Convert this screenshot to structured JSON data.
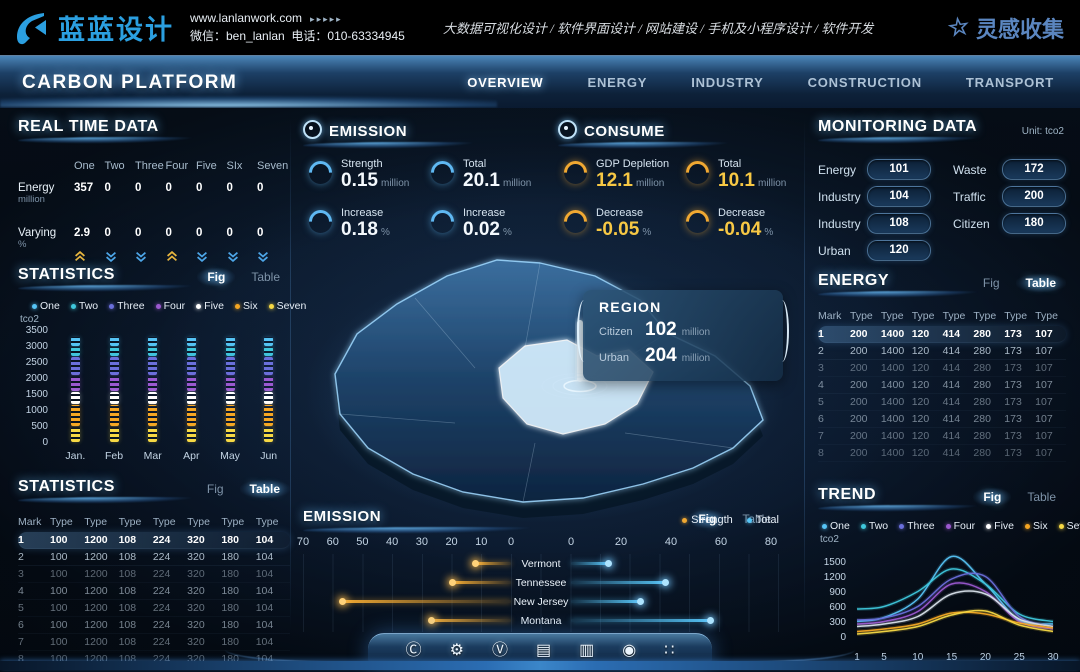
{
  "topbar": {
    "logo_text": "蓝蓝设计",
    "website": "www.lanlanwork.com",
    "website_arrows": "▸▸▸▸▸",
    "wechat": "微信：ben_lanlan",
    "phone": "电话：010-63334945",
    "services": "大数据可视化设计 / 软件界面设计 / 网站建设 / 手机及小程序设计 / 软件开发",
    "collect": "灵感收集"
  },
  "nav": {
    "title": "CARBON PLATFORM",
    "items": [
      {
        "label": "OVERVIEW",
        "active": true
      },
      {
        "label": "ENERGY",
        "active": false
      },
      {
        "label": "INDUSTRY",
        "active": false
      },
      {
        "label": "CONSTRUCTION",
        "active": false
      },
      {
        "label": "TRANSPORT",
        "active": false
      }
    ]
  },
  "realtime": {
    "title": "REAL TIME DATA",
    "columns": [
      "One",
      "Two",
      "Three",
      "Four",
      "Five",
      "SIx",
      "Seven"
    ],
    "rows": [
      {
        "label": "Energy",
        "unit": "million",
        "values": [
          "357",
          "0",
          "0",
          "0",
          "0",
          "0",
          "0"
        ]
      },
      {
        "label": "Varying",
        "unit": "%",
        "values": [
          "2.9",
          "0",
          "0",
          "0",
          "0",
          "0",
          "0"
        ]
      }
    ],
    "trends": [
      "up",
      "down",
      "down",
      "up",
      "down",
      "down",
      "down"
    ],
    "trend_colors": {
      "up": "#e8b63e",
      "down": "#4da6e8"
    }
  },
  "statistics_fig": {
    "title": "STATISTICS",
    "tabs": {
      "fig": "Fig",
      "table": "Table",
      "active": "fig"
    }
  },
  "statistics_table": {
    "title": "STATISTICS",
    "tabs": {
      "fig": "Fig",
      "table": "Table",
      "active": "table"
    },
    "columns": [
      "Mark",
      "Type",
      "Type",
      "Type",
      "Type",
      "Type",
      "Type",
      "Type"
    ],
    "rows": [
      [
        "1",
        "100",
        "1200",
        "108",
        "224",
        "320",
        "180",
        "104"
      ],
      [
        "2",
        "100",
        "1200",
        "108",
        "224",
        "320",
        "180",
        "104"
      ],
      [
        "3",
        "100",
        "1200",
        "108",
        "224",
        "320",
        "180",
        "104"
      ],
      [
        "4",
        "100",
        "1200",
        "108",
        "224",
        "320",
        "180",
        "104"
      ],
      [
        "5",
        "100",
        "1200",
        "108",
        "224",
        "320",
        "180",
        "104"
      ],
      [
        "6",
        "100",
        "1200",
        "108",
        "224",
        "320",
        "180",
        "104"
      ],
      [
        "7",
        "100",
        "1200",
        "108",
        "224",
        "320",
        "180",
        "104"
      ],
      [
        "8",
        "100",
        "1200",
        "108",
        "224",
        "320",
        "180",
        "104"
      ]
    ]
  },
  "emission": {
    "title": "EMISSION",
    "stats": [
      {
        "label": "Strength",
        "value": "0.15",
        "unit": "million"
      },
      {
        "label": "Total",
        "value": "20.1",
        "unit": "million"
      },
      {
        "label": "Increase",
        "value": "0.18",
        "unit": "%"
      },
      {
        "label": "Increase",
        "value": "0.02",
        "unit": "%"
      }
    ]
  },
  "consume": {
    "title": "CONSUME",
    "stats": [
      {
        "label": "GDP Depletion",
        "value": "12.1",
        "unit": "million"
      },
      {
        "label": "Total",
        "value": "10.1",
        "unit": "million"
      },
      {
        "label": "Decrease",
        "value": "-0.05",
        "unit": "%"
      },
      {
        "label": "Decrease",
        "value": "-0.04",
        "unit": "%"
      }
    ]
  },
  "region_tooltip": {
    "title": "REGION",
    "rows": [
      {
        "label": "Citizen",
        "value": "102",
        "unit": "million"
      },
      {
        "label": "Urban",
        "value": "204",
        "unit": "million"
      }
    ]
  },
  "monitoring": {
    "title": "MONITORING DATA",
    "unit": "Unit: tco2",
    "left": [
      {
        "label": "Energy",
        "value": "101"
      },
      {
        "label": "Industry",
        "value": "104"
      },
      {
        "label": "Industry",
        "value": "108"
      },
      {
        "label": "Urban",
        "value": "120"
      }
    ],
    "right": [
      {
        "label": "Waste",
        "value": "172"
      },
      {
        "label": "Traffic",
        "value": "200"
      },
      {
        "label": "Citizen",
        "value": "180"
      }
    ]
  },
  "energy_table": {
    "title": "ENERGY",
    "tabs": {
      "fig": "Fig",
      "table": "Table",
      "active": "table"
    },
    "columns": [
      "Mark",
      "Type",
      "Type",
      "Type",
      "Type",
      "Type",
      "Type",
      "Type"
    ],
    "rows": [
      [
        "1",
        "200",
        "1400",
        "120",
        "414",
        "280",
        "173",
        "107"
      ],
      [
        "2",
        "200",
        "1400",
        "120",
        "414",
        "280",
        "173",
        "107"
      ],
      [
        "3",
        "200",
        "1400",
        "120",
        "414",
        "280",
        "173",
        "107"
      ],
      [
        "4",
        "200",
        "1400",
        "120",
        "414",
        "280",
        "173",
        "107"
      ],
      [
        "5",
        "200",
        "1400",
        "120",
        "414",
        "280",
        "173",
        "107"
      ],
      [
        "6",
        "200",
        "1400",
        "120",
        "414",
        "280",
        "173",
        "107"
      ],
      [
        "7",
        "200",
        "1400",
        "120",
        "414",
        "280",
        "173",
        "107"
      ],
      [
        "8",
        "200",
        "1400",
        "120",
        "414",
        "280",
        "173",
        "107"
      ]
    ]
  },
  "trend": {
    "title": "TREND",
    "tabs": {
      "fig": "Fig",
      "table": "Table",
      "active": "fig"
    }
  },
  "emission_chart": {
    "title": "EMISSION",
    "tabs": {
      "fig": "Fig",
      "table": "Table",
      "active": "fig"
    }
  },
  "dock": {
    "icons": [
      {
        "name": "badge-c-icon",
        "glyph": "Ⓒ"
      },
      {
        "name": "gear-icon",
        "glyph": "⚙"
      },
      {
        "name": "badge-v-icon",
        "glyph": "Ⓥ"
      },
      {
        "name": "bank-icon",
        "glyph": "▤"
      },
      {
        "name": "chart-window-icon",
        "glyph": "▥"
      },
      {
        "name": "nut-icon",
        "glyph": "◉"
      },
      {
        "name": "apps-grid-icon",
        "glyph": "∷"
      }
    ]
  },
  "colors": {
    "accent_blue": "#56c4f5",
    "accent_gold": "#f0a832",
    "nav_glow": "#8ed2ff"
  },
  "chart_data": [
    {
      "id": "statistics_bars",
      "type": "bar",
      "stacked": true,
      "title": "STATISTICS",
      "ylabel": "tco2",
      "ylim": [
        0,
        3500
      ],
      "yticks": [
        0,
        500,
        1000,
        1500,
        2000,
        2500,
        3000,
        3500
      ],
      "categories": [
        "Jan.",
        "Feb",
        "Mar",
        "Apr",
        "May",
        "Jun"
      ],
      "series": [
        {
          "name": "Seven",
          "color": "#f7d944",
          "values": [
            500,
            500,
            500,
            500,
            500,
            500
          ]
        },
        {
          "name": "Six",
          "color": "#f5a623",
          "values": [
            700,
            700,
            700,
            700,
            700,
            700
          ]
        },
        {
          "name": "Five",
          "color": "#ffffff",
          "values": [
            400,
            400,
            400,
            400,
            400,
            400
          ]
        },
        {
          "name": "Four",
          "color": "#9b59d0",
          "values": [
            500,
            500,
            500,
            500,
            500,
            500
          ]
        },
        {
          "name": "Three",
          "color": "#6a6fdb",
          "values": [
            600,
            600,
            600,
            600,
            600,
            600
          ]
        },
        {
          "name": "Two",
          "color": "#3fc8dc",
          "values": [
            300,
            300,
            300,
            300,
            300,
            300
          ]
        },
        {
          "name": "One",
          "color": "#56c4f5",
          "values": [
            300,
            300,
            300,
            300,
            300,
            300
          ]
        }
      ],
      "legend": [
        {
          "label": "One",
          "color": "#56c4f5"
        },
        {
          "label": "Two",
          "color": "#3fc8dc"
        },
        {
          "label": "Three",
          "color": "#6a6fdb"
        },
        {
          "label": "Four",
          "color": "#9b59d0"
        },
        {
          "label": "Five",
          "color": "#ffffff"
        },
        {
          "label": "Six",
          "color": "#f5a623"
        },
        {
          "label": "Seven",
          "color": "#f7d944"
        }
      ],
      "legend_position": "top",
      "grid": false
    },
    {
      "id": "emission_compare",
      "type": "bar",
      "orientation": "horizontal-diverging",
      "title": "EMISSION",
      "categories": [
        "Vermont",
        "Tennessee",
        "New Jersey",
        "Montana"
      ],
      "series": [
        {
          "name": "Strength",
          "color": "#f0a832",
          "values": [
            12,
            20,
            57,
            27
          ]
        },
        {
          "name": "Total",
          "color": "#56c4f5",
          "values": [
            15,
            38,
            28,
            56
          ]
        }
      ],
      "left_axis_ticks": [
        70,
        60,
        50,
        40,
        30,
        20,
        10,
        0
      ],
      "right_axis_ticks": [
        0,
        20,
        40,
        60,
        80
      ],
      "left_axis_max": 70,
      "right_axis_max": 80,
      "legend": [
        {
          "label": "Strength",
          "color": "#f0a832"
        },
        {
          "label": "Total",
          "color": "#56c4f5"
        }
      ],
      "legend_position": "top-right",
      "grid": true
    },
    {
      "id": "trend_lines",
      "type": "line",
      "title": "TREND",
      "ylabel": "tco2",
      "ylim": [
        0,
        1800
      ],
      "yticks": [
        0,
        300,
        600,
        900,
        1200,
        1500
      ],
      "x": [
        1,
        5,
        10,
        15,
        20,
        25,
        30
      ],
      "series": [
        {
          "name": "One",
          "color": "#56c4f5",
          "values": [
            350,
            430,
            800,
            1650,
            1100,
            380,
            300
          ]
        },
        {
          "name": "Two",
          "color": "#3fc8dc",
          "values": [
            600,
            650,
            950,
            1400,
            1100,
            500,
            350
          ]
        },
        {
          "name": "Three",
          "color": "#6a6fdb",
          "values": [
            380,
            420,
            650,
            1200,
            1250,
            450,
            250
          ]
        },
        {
          "name": "Four",
          "color": "#9b59d0",
          "values": [
            300,
            350,
            550,
            1100,
            950,
            350,
            200
          ]
        },
        {
          "name": "Five",
          "color": "#d8e2ea",
          "values": [
            250,
            300,
            450,
            900,
            900,
            400,
            250
          ]
        },
        {
          "name": "Six",
          "color": "#f5a623",
          "values": [
            150,
            200,
            300,
            520,
            500,
            320,
            220
          ]
        },
        {
          "name": "Seven",
          "color": "#f7d944",
          "values": [
            100,
            150,
            250,
            480,
            560,
            280,
            150
          ]
        }
      ],
      "legend": [
        {
          "label": "One",
          "color": "#56c4f5"
        },
        {
          "label": "Two",
          "color": "#3fc8dc"
        },
        {
          "label": "Three",
          "color": "#6a6fdb"
        },
        {
          "label": "Four",
          "color": "#9b59d0"
        },
        {
          "label": "Five",
          "color": "#ffffff"
        },
        {
          "label": "Six",
          "color": "#f5a623"
        },
        {
          "label": "Seven",
          "color": "#f7d944"
        }
      ],
      "legend_position": "top",
      "grid": false
    }
  ]
}
